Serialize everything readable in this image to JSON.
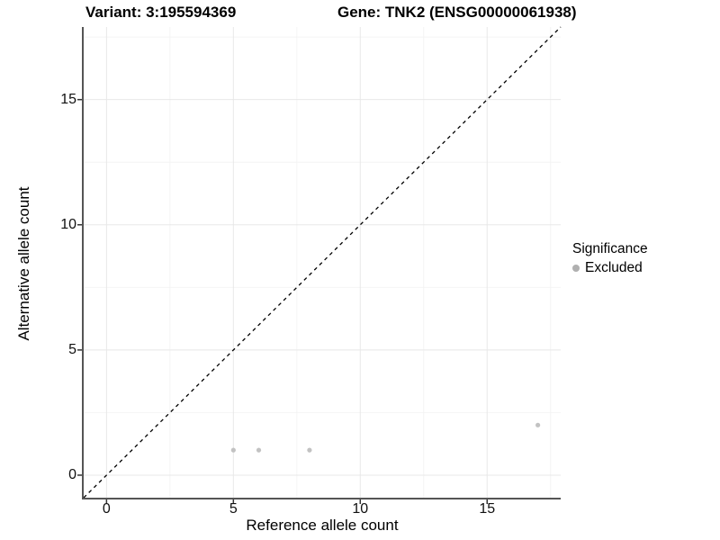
{
  "chart_data": {
    "type": "scatter",
    "title_left": "Variant: 3:195594369",
    "title_right": "Gene: TNK2 (ENSG00000061938)",
    "xlabel": "Reference allele count",
    "ylabel": "Alternative allele count",
    "xlim": [
      -0.9,
      17.9
    ],
    "ylim": [
      -0.9,
      17.9
    ],
    "x_ticks": [
      0,
      5,
      10,
      15
    ],
    "y_ticks": [
      0,
      5,
      10,
      15
    ],
    "x_minor_ticks": [
      2.5,
      7.5,
      12.5,
      17.5
    ],
    "y_minor_ticks": [
      2.5,
      7.5,
      12.5,
      17.5
    ],
    "series": [
      {
        "name": "Excluded",
        "color": "#c2c2c2",
        "points": [
          [
            5,
            1
          ],
          [
            6,
            1
          ],
          [
            8,
            1
          ],
          [
            17,
            2
          ]
        ]
      }
    ],
    "reference_line": {
      "slope": 1,
      "intercept": 0,
      "style": "dashed",
      "color": "#000000"
    },
    "legend": {
      "title": "Significance",
      "position": "right",
      "items": [
        {
          "label": "Excluded",
          "color": "#b0b0b0"
        }
      ]
    },
    "grid": true,
    "style": {
      "grid_major_color": "#e8e8e8",
      "grid_minor_color": "#f4f4f4",
      "axis_line_color": "#555555",
      "tick_color": "#333333",
      "point_radius": 2.6,
      "legend_dot_radius": 4
    }
  }
}
